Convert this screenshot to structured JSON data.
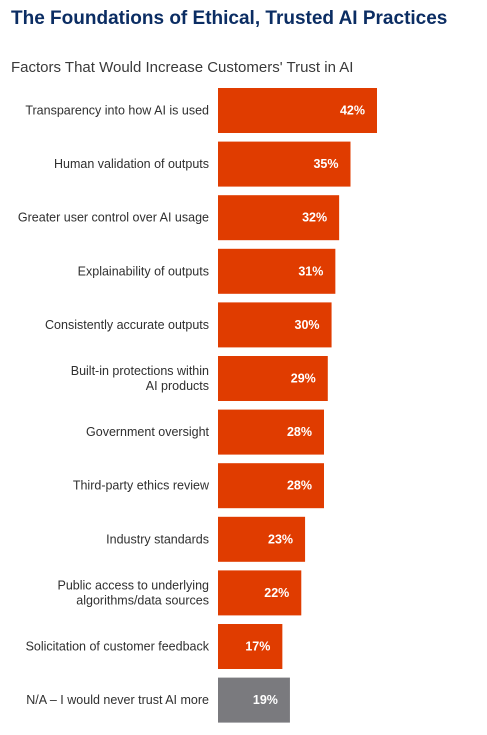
{
  "title": "The Foundations of Ethical, Trusted AI Practices",
  "subtitle": "Factors That Would Increase Customers' Trust in AI",
  "colors": {
    "primary_bar": "#e03c00",
    "na_bar": "#7a7a7e",
    "title": "#0b2d63"
  },
  "chart_data": {
    "type": "bar",
    "orientation": "horizontal",
    "title": "Factors That Would Increase Customers' Trust in AI",
    "categories": [
      [
        "Transparency into how AI is used"
      ],
      [
        "Human validation of outputs"
      ],
      [
        "Greater user control over AI usage"
      ],
      [
        "Explainability of outputs"
      ],
      [
        "Consistently accurate outputs"
      ],
      [
        "Built-in protections within",
        "AI products"
      ],
      [
        "Government oversight"
      ],
      [
        "Third-party ethics review"
      ],
      [
        "Industry standards"
      ],
      [
        "Public access to underlying",
        "algorithms/data sources"
      ],
      [
        "Solicitation of customer feedback"
      ],
      [
        "N/A – I would never trust AI more"
      ]
    ],
    "values": [
      42,
      35,
      32,
      31,
      30,
      29,
      28,
      28,
      23,
      22,
      17,
      19
    ],
    "value_labels": [
      "42%",
      "35%",
      "32%",
      "31%",
      "30%",
      "29%",
      "28%",
      "28%",
      "23%",
      "22%",
      "17%",
      "19%"
    ],
    "highlight": [
      false,
      false,
      false,
      false,
      false,
      false,
      false,
      false,
      false,
      false,
      false,
      true
    ],
    "xlim": [
      0,
      42
    ],
    "grid": false,
    "legend": "none"
  }
}
